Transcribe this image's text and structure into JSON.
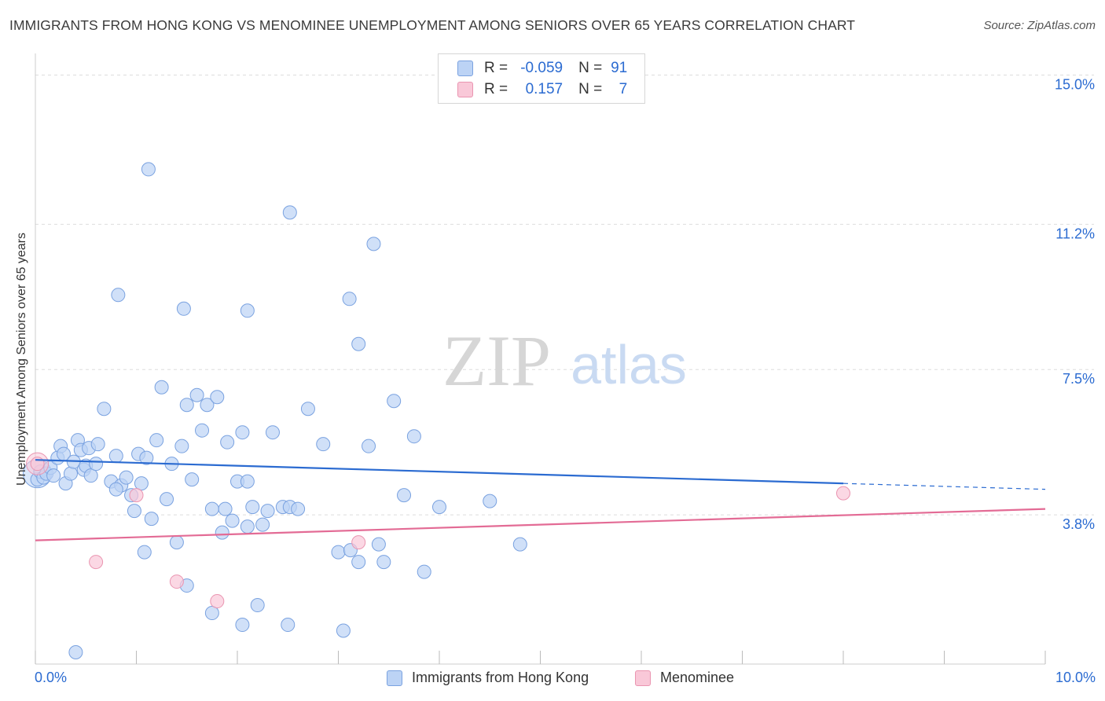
{
  "title": "IMMIGRANTS FROM HONG KONG VS MENOMINEE UNEMPLOYMENT AMONG SENIORS OVER 65 YEARS CORRELATION CHART",
  "source": "Source: ZipAtlas.com",
  "watermark": {
    "zip": "ZIP",
    "atlas": "atlas"
  },
  "colors": {
    "blue": "#2b6bd1",
    "blue_fill": "#bcd3f5",
    "blue_stroke": "#7aa2e0",
    "pink": "#e36b95",
    "pink_fill": "#f9c8d8",
    "pink_stroke": "#ea95b1",
    "grid": "#dddddd",
    "tick_label": "#2b6bd1"
  },
  "legend": {
    "rows": [
      {
        "r_label": "R =",
        "r_value": "-0.059",
        "n_label": "N =",
        "n_value": "91",
        "color": "blue"
      },
      {
        "r_label": "R =",
        "r_value": "0.157",
        "n_label": "N =",
        "n_value": "7",
        "color": "pink"
      }
    ]
  },
  "chart_data": {
    "type": "scatter",
    "title": "IMMIGRANTS FROM HONG KONG VS MENOMINEE UNEMPLOYMENT AMONG SENIORS OVER 65 YEARS CORRELATION CHART",
    "xlabel": "",
    "ylabel": "Unemployment Among Seniors over 65 years",
    "xlim": [
      0,
      10
    ],
    "ylim": [
      0,
      15.35
    ],
    "x_tick_labels": [
      "0.0%",
      "10.0%"
    ],
    "y_ticks": [
      3.8,
      7.5,
      11.2,
      15.0
    ],
    "y_tick_labels": [
      "3.8%",
      "7.5%",
      "11.2%",
      "15.0%"
    ],
    "grid": true,
    "legend_position": "top-center",
    "series": [
      {
        "name": "Immigrants from Hong Kong",
        "color": "blue",
        "trend": {
          "x0": 0.0,
          "y0": 5.2,
          "x1": 8.0,
          "y1": 4.6,
          "dash_to_x": 10.0,
          "dash_to_y": 4.45
        },
        "points": [
          [
            0.02,
            4.7
          ],
          [
            0.05,
            4.9
          ],
          [
            0.08,
            4.75
          ],
          [
            0.11,
            4.85
          ],
          [
            0.15,
            5.0
          ],
          [
            0.18,
            4.8
          ],
          [
            0.22,
            5.25
          ],
          [
            0.25,
            5.55
          ],
          [
            0.28,
            5.35
          ],
          [
            0.3,
            4.6
          ],
          [
            0.35,
            4.85
          ],
          [
            0.38,
            5.15
          ],
          [
            0.42,
            5.7
          ],
          [
            0.45,
            5.45
          ],
          [
            0.48,
            4.95
          ],
          [
            0.5,
            5.05
          ],
          [
            0.53,
            5.5
          ],
          [
            0.55,
            4.8
          ],
          [
            0.6,
            5.1
          ],
          [
            0.62,
            5.6
          ],
          [
            0.68,
            6.5
          ],
          [
            0.75,
            4.65
          ],
          [
            0.8,
            5.3
          ],
          [
            0.85,
            4.55
          ],
          [
            0.9,
            4.75
          ],
          [
            0.95,
            4.3
          ],
          [
            0.98,
            3.9
          ],
          [
            1.02,
            5.35
          ],
          [
            1.05,
            4.6
          ],
          [
            1.1,
            5.25
          ],
          [
            1.15,
            3.7
          ],
          [
            1.2,
            5.7
          ],
          [
            1.25,
            7.05
          ],
          [
            1.3,
            4.2
          ],
          [
            1.35,
            5.1
          ],
          [
            1.4,
            3.1
          ],
          [
            1.45,
            5.55
          ],
          [
            1.5,
            6.6
          ],
          [
            1.55,
            4.7
          ],
          [
            1.6,
            6.85
          ],
          [
            1.65,
            5.95
          ],
          [
            1.7,
            6.6
          ],
          [
            1.75,
            3.95
          ],
          [
            1.8,
            6.8
          ],
          [
            1.85,
            3.35
          ],
          [
            1.88,
            3.95
          ],
          [
            1.9,
            5.65
          ],
          [
            1.95,
            3.65
          ],
          [
            2.0,
            4.65
          ],
          [
            2.05,
            5.9
          ],
          [
            2.1,
            4.65
          ],
          [
            2.15,
            4.0
          ],
          [
            2.2,
            1.5
          ],
          [
            2.25,
            3.55
          ],
          [
            2.3,
            3.9
          ],
          [
            2.35,
            5.9
          ],
          [
            2.45,
            4.0
          ],
          [
            2.52,
            4.0
          ],
          [
            2.6,
            3.95
          ],
          [
            2.7,
            6.5
          ],
          [
            2.85,
            5.6
          ],
          [
            3.0,
            2.85
          ],
          [
            3.12,
            2.9
          ],
          [
            3.2,
            2.6
          ],
          [
            3.3,
            5.55
          ],
          [
            3.4,
            3.05
          ],
          [
            3.55,
            6.7
          ],
          [
            3.65,
            4.3
          ],
          [
            3.75,
            5.8
          ],
          [
            3.85,
            2.35
          ],
          [
            4.0,
            4.0
          ],
          [
            4.5,
            4.15
          ],
          [
            4.8,
            3.05
          ],
          [
            0.4,
            0.3
          ],
          [
            1.5,
            2.0
          ],
          [
            1.75,
            1.3
          ],
          [
            2.1,
            3.5
          ],
          [
            1.12,
            12.6
          ],
          [
            0.82,
            9.4
          ],
          [
            1.47,
            9.05
          ],
          [
            2.1,
            9.0
          ],
          [
            2.52,
            11.5
          ],
          [
            3.11,
            9.3
          ],
          [
            3.35,
            10.7
          ],
          [
            3.2,
            8.15
          ],
          [
            3.05,
            0.85
          ],
          [
            1.08,
            2.85
          ],
          [
            2.5,
            1.0
          ],
          [
            0.8,
            4.45
          ],
          [
            3.45,
            2.6
          ],
          [
            2.05,
            1.0
          ]
        ]
      },
      {
        "name": "Menominee",
        "color": "pink",
        "trend": {
          "x0": 0.0,
          "y0": 3.15,
          "x1": 10.0,
          "y1": 3.95
        },
        "points": [
          [
            0.02,
            5.1
          ],
          [
            0.6,
            2.6
          ],
          [
            1.0,
            4.3
          ],
          [
            1.4,
            2.1
          ],
          [
            1.8,
            1.6
          ],
          [
            3.2,
            3.1
          ],
          [
            8.0,
            4.35
          ]
        ]
      }
    ]
  },
  "bottom_legend": [
    {
      "label": "Immigrants from Hong Kong",
      "color": "blue"
    },
    {
      "label": "Menominee",
      "color": "pink"
    }
  ]
}
